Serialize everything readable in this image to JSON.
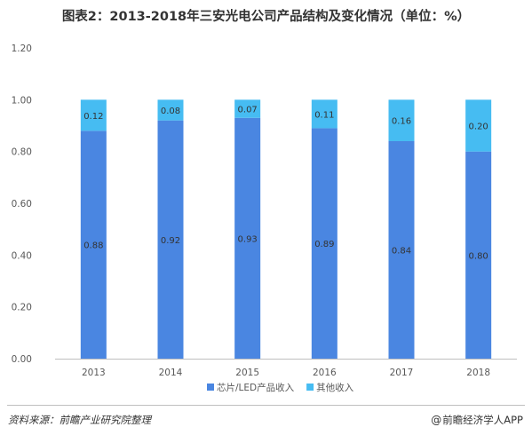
{
  "title": "图表2：2013-2018年三安光电公司产品结构及变化情况（单位：%）",
  "footer": {
    "source": "资料来源：前瞻产业研究院整理",
    "brand_icon": "at-sign-icon",
    "brand": "前瞻经济学人APP"
  },
  "colors": {
    "series1": "#4A86E1",
    "series2": "#46BCF2",
    "axis": "#bfbfbf",
    "text": "#595959"
  },
  "chart_data": {
    "type": "bar",
    "stacked": true,
    "categories": [
      "2013",
      "2014",
      "2015",
      "2016",
      "2017",
      "2018"
    ],
    "series": [
      {
        "name": "芯片/LED产品收入",
        "values": [
          0.88,
          0.92,
          0.93,
          0.89,
          0.84,
          0.8
        ],
        "labels": [
          "0.88",
          "0.92",
          "0.93",
          "0.89",
          "0.84",
          "0.80"
        ]
      },
      {
        "name": "其他收入",
        "values": [
          0.12,
          0.08,
          0.07,
          0.11,
          0.16,
          0.2
        ],
        "labels": [
          "0.12",
          "0.08",
          "0.07",
          "0.11",
          "0.16",
          "0.20"
        ]
      }
    ],
    "y_ticks": [
      "0.00",
      "0.20",
      "0.40",
      "0.60",
      "0.80",
      "1.00",
      "1.20"
    ],
    "ylim": [
      0,
      1.2
    ],
    "grid": false,
    "legend_position": "bottom"
  }
}
